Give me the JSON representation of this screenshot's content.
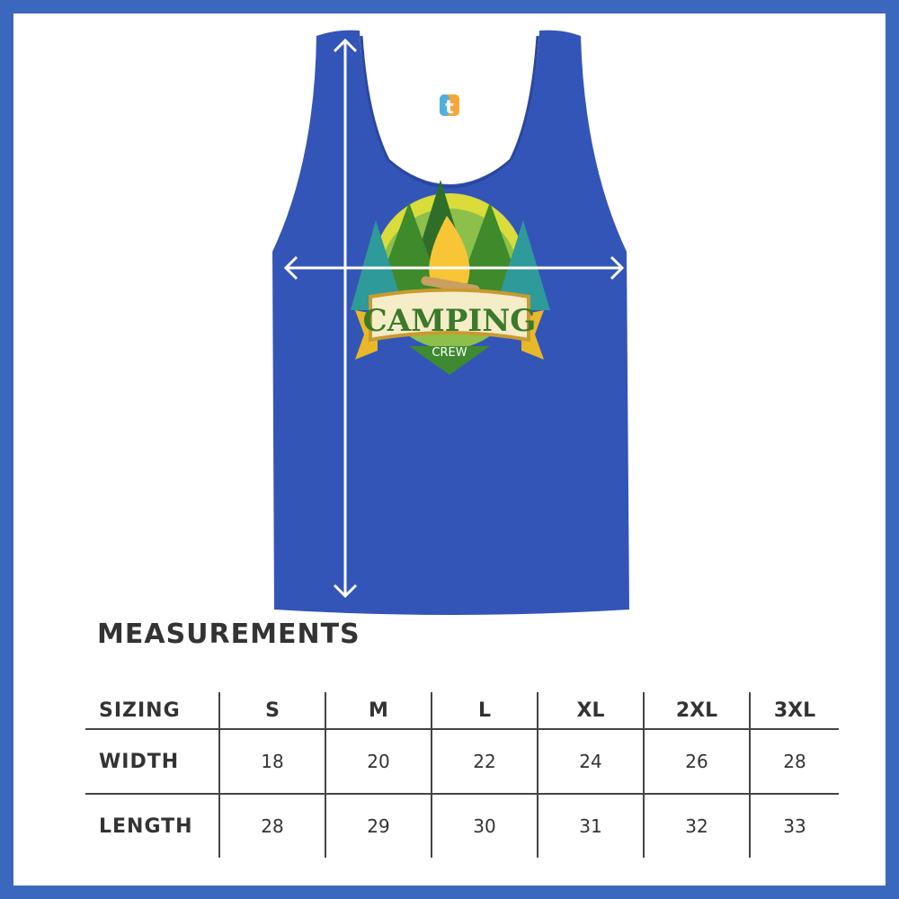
{
  "product": {
    "shirt_color": "#3355b8",
    "frame_color": "#3a68bf",
    "tag_letter": "t",
    "logo": {
      "main_text": "CAMPING",
      "sub_text": "CREW"
    }
  },
  "measurements": {
    "title": "MEASUREMENTS",
    "header": {
      "label": "SIZING",
      "sizes": [
        "S",
        "M",
        "L",
        "XL",
        "2XL",
        "3XL"
      ]
    },
    "rows": [
      {
        "label": "WIDTH",
        "values": [
          "18",
          "20",
          "22",
          "24",
          "26",
          "28"
        ]
      },
      {
        "label": "LENGTH",
        "values": [
          "28",
          "29",
          "30",
          "31",
          "32",
          "33"
        ]
      }
    ]
  }
}
